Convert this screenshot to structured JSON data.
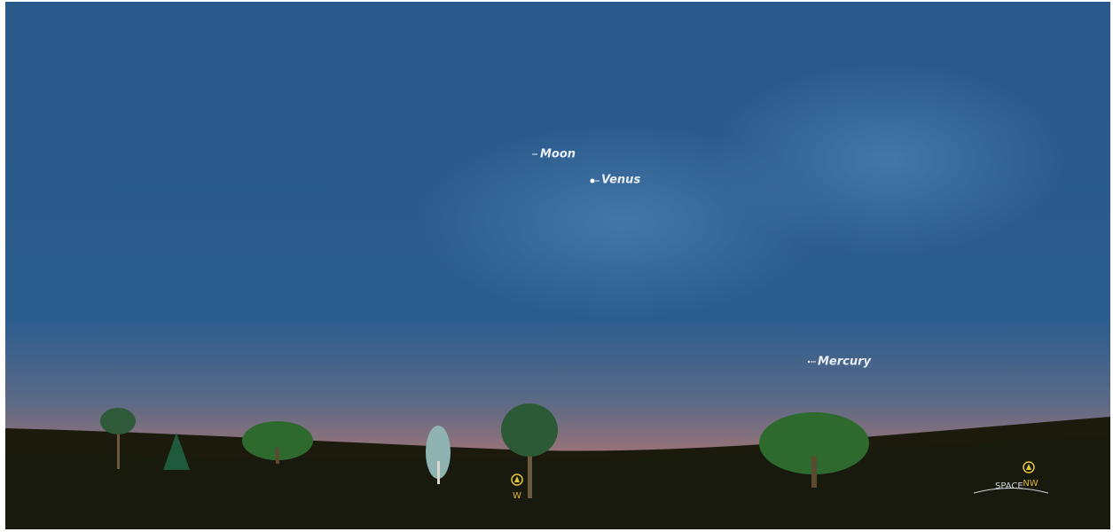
{
  "sky_objects": [
    {
      "label": "Moon"
    },
    {
      "label": "Venus"
    },
    {
      "label": "Mercury"
    }
  ],
  "compass": [
    {
      "label": "W"
    },
    {
      "label": "NW"
    }
  ],
  "hint": "SPACE"
}
